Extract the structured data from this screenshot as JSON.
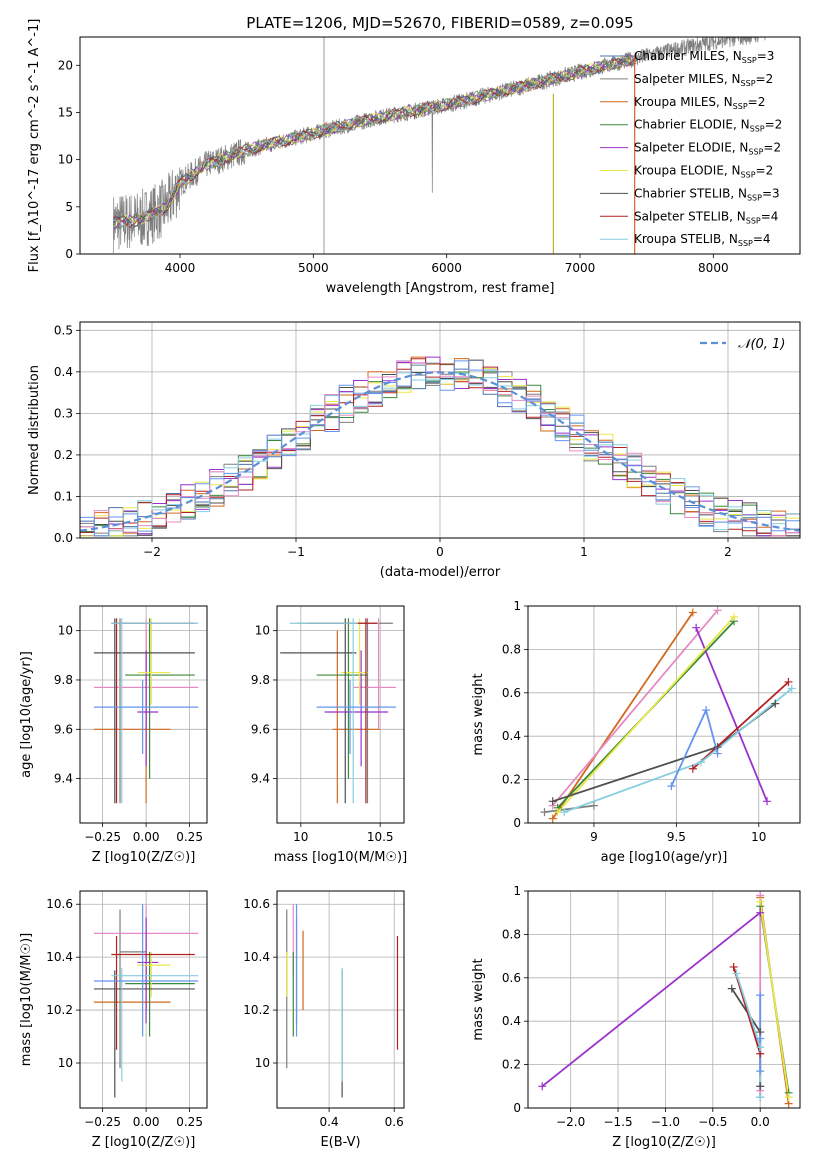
{
  "colors": {
    "Chabrier MILES": "#4c72b0",
    "Salpeter MILES": "#7f7f7f",
    "Kroupa MILES": "#d2691e",
    "Chabrier ELODIE": "#3a8a3a",
    "Salpeter ELODIE": "#9932cc",
    "Kroupa ELODIE": "#e8e84a",
    "Chabrier STELIB": "#505050",
    "Salpeter STELIB": "#b22222",
    "Kroupa STELIB": "#87cee0",
    "extra_pink": "#e78ac3",
    "extra_blue": "#6495ed",
    "gauss": "#5b8fd6",
    "data": "#808080"
  },
  "chart_data": [
    {
      "id": "spectrum",
      "type": "line",
      "title": "PLATE=1206, MJD=52670, FIBERID=0589, z=0.095",
      "xlabel": "wavelength [Angstrom, rest frame]",
      "ylabel": "Flux [f_λ10^-17 erg cm^-2 s^-1 A^-1]",
      "xlim": [
        3250,
        8650
      ],
      "ylim": [
        0,
        23
      ],
      "xticks": [
        4000,
        5000,
        6000,
        7000,
        8000
      ],
      "yticks": [
        0,
        5,
        10,
        15,
        20
      ],
      "continuum": [
        [
          3500,
          3.3
        ],
        [
          3700,
          3.6
        ],
        [
          3900,
          5.0
        ],
        [
          4000,
          7.5
        ],
        [
          4200,
          9.5
        ],
        [
          4500,
          11.0
        ],
        [
          5000,
          12.8
        ],
        [
          5500,
          14.5
        ],
        [
          6000,
          15.8
        ],
        [
          6500,
          17.5
        ],
        [
          7000,
          19.3
        ],
        [
          7500,
          21.0
        ],
        [
          8000,
          22.5
        ],
        [
          8400,
          23.4
        ]
      ],
      "legend": [
        {
          "label": "Chabrier MILES, N",
          "nssp": "3"
        },
        {
          "label": "Salpeter MILES, N",
          "nssp": "2"
        },
        {
          "label": "Kroupa MILES, N",
          "nssp": "2"
        },
        {
          "label": "Chabrier ELODIE, N",
          "nssp": "2"
        },
        {
          "label": "Salpeter ELODIE, N",
          "nssp": "2"
        },
        {
          "label": "Kroupa ELODIE, N",
          "nssp": "2"
        },
        {
          "label": "Chabrier STELIB, N",
          "nssp": "3"
        },
        {
          "label": "Salpeter STELIB, N",
          "nssp": "4"
        },
        {
          "label": "Kroupa STELIB, N",
          "nssp": "4"
        }
      ],
      "legend_sub": "SSP",
      "legend_placement": "upper-right"
    },
    {
      "id": "residuals",
      "type": "line",
      "xlabel": "(data-model)/error",
      "ylabel": "Normed distribution",
      "xlim": [
        -2.5,
        2.5
      ],
      "ylim": [
        0,
        0.52
      ],
      "xticks": [
        -2,
        -1,
        0,
        1,
        2
      ],
      "xticklabels": [
        "−2",
        "−1",
        "0",
        "1",
        "2"
      ],
      "yticks": [
        0.0,
        0.1,
        0.2,
        0.3,
        0.4,
        0.5
      ],
      "yticklabels": [
        "0.0",
        "0.1",
        "0.2",
        "0.3",
        "0.4",
        "0.5"
      ],
      "legend": "N(0,1)",
      "grid": true
    },
    {
      "id": "age_vs_Z",
      "type": "scatter",
      "xlabel": "Z [log10(Z/Z☉)]",
      "ylabel": "age [log10(age/yr)]",
      "xlim": [
        -0.38,
        0.35
      ],
      "ylim": [
        9.22,
        10.1
      ],
      "xticks": [
        -0.25,
        0.0,
        0.25
      ],
      "xticklabels": [
        "−0.25",
        "0.00",
        "0.25"
      ],
      "yticks": [
        9.4,
        9.6,
        9.8,
        10.0
      ],
      "grid": true
    },
    {
      "id": "age_vs_mass",
      "type": "scatter",
      "xlabel": "mass [log10(M/M☉)]",
      "xlim": [
        9.85,
        10.65
      ],
      "ylim": [
        9.22,
        10.1
      ],
      "xticks": [
        10.0,
        10.5
      ],
      "yticks": [
        9.4,
        9.6,
        9.8,
        10.0
      ],
      "grid": true
    },
    {
      "id": "weight_vs_age",
      "type": "line",
      "xlabel": "age [log10(age/yr)]",
      "ylabel": "mass weight",
      "xlim": [
        8.6,
        10.25
      ],
      "ylim": [
        0,
        1.0
      ],
      "xticks": [
        9.0,
        9.5,
        10.0
      ],
      "yticks": [
        0.0,
        0.2,
        0.4,
        0.6,
        0.8,
        1.0
      ],
      "grid": true
    },
    {
      "id": "mass_vs_Z",
      "type": "scatter",
      "xlabel": "Z [log10(Z/Z☉)]",
      "ylabel": "mass [log10(M/M☉)]",
      "xlim": [
        -0.38,
        0.35
      ],
      "ylim": [
        9.83,
        10.65
      ],
      "xticks": [
        -0.25,
        0.0,
        0.25
      ],
      "xticklabels": [
        "−0.25",
        "0.00",
        "0.25"
      ],
      "yticks": [
        10.0,
        10.2,
        10.4,
        10.6
      ],
      "grid": true
    },
    {
      "id": "mass_vs_ebv",
      "type": "scatter",
      "xlabel": "E(B-V)",
      "xlim": [
        0.24,
        0.63
      ],
      "ylim": [
        9.83,
        10.65
      ],
      "xticks": [
        0.4,
        0.6
      ],
      "yticks": [
        10.0,
        10.2,
        10.4,
        10.6
      ],
      "grid": true
    },
    {
      "id": "weight_vs_Z",
      "type": "line",
      "xlabel": "Z [log10(Z/Z☉)]",
      "ylabel": "mass weight",
      "xlim": [
        -2.45,
        0.42
      ],
      "ylim": [
        0,
        1.0
      ],
      "xticks": [
        -2.0,
        -1.5,
        -1.0,
        -0.5,
        0.0
      ],
      "xticklabels": [
        "−2.0",
        "−1.5",
        "−1.0",
        "−0.5",
        "0.0"
      ],
      "yticks": [
        0.0,
        0.2,
        0.4,
        0.6,
        0.8,
        1.0
      ],
      "grid": true
    }
  ],
  "models": [
    {
      "color": "#7f7f7f",
      "z": -0.15,
      "zerr": [
        -0.15,
        0.0
      ],
      "age": 10.03,
      "ageerr": [
        9.3,
        10.05
      ],
      "mass": 10.42,
      "merr": [
        9.98,
        10.58
      ],
      "ebv": 0.27,
      "weights_age": [
        [
          8.7,
          0.05
        ],
        [
          9.0,
          0.08
        ]
      ],
      "weights_z": [
        [
          0.0,
          0.05
        ],
        [
          0.0,
          0.1
        ]
      ]
    },
    {
      "color": "#d2691e",
      "z": 0.0,
      "zerr": [
        -0.3,
        0.14
      ],
      "age": 9.6,
      "ageerr": [
        9.3,
        10.0
      ],
      "mass": 10.23,
      "merr": [
        10.2,
        10.5
      ],
      "ebv": 0.32,
      "weights_age": [
        [
          8.75,
          0.02
        ],
        [
          9.6,
          0.97
        ]
      ],
      "weights_z": [
        [
          0.3,
          0.02
        ],
        [
          0.0,
          0.97
        ]
      ]
    },
    {
      "color": "#e78ac3",
      "z": 0.0,
      "zerr": [
        -0.3,
        0.3
      ],
      "age": 9.77,
      "ageerr": [
        9.6,
        10.05
      ],
      "mass": 10.49,
      "merr": [
        10.33,
        10.6
      ],
      "ebv": 0.29,
      "weights_age": [
        [
          8.75,
          0.08
        ],
        [
          9.75,
          0.98
        ]
      ],
      "weights_z": [
        [
          0.0,
          0.08
        ],
        [
          0.0,
          0.98
        ]
      ]
    },
    {
      "color": "#3a8a3a",
      "z": 0.02,
      "zerr": [
        -0.12,
        0.28
      ],
      "age": 9.82,
      "ageerr": [
        9.4,
        10.05
      ],
      "mass": 10.3,
      "merr": [
        10.1,
        10.42
      ],
      "ebv": 0.29,
      "weights_age": [
        [
          8.78,
          0.07
        ],
        [
          9.85,
          0.93
        ]
      ],
      "weights_z": [
        [
          0.3,
          0.07
        ],
        [
          0.0,
          0.93
        ]
      ]
    },
    {
      "color": "#9932cc",
      "z": 0.0,
      "zerr": [
        -0.05,
        0.07
      ],
      "age": 9.67,
      "ageerr": [
        9.45,
        9.92
      ],
      "mass": 10.38,
      "merr": [
        10.15,
        10.55
      ],
      "ebv": 0.3,
      "weights_age": [
        [
          9.62,
          0.9
        ],
        [
          10.05,
          0.1
        ]
      ],
      "weights_z": [
        [
          0.0,
          0.9
        ],
        [
          -2.3,
          0.1
        ]
      ]
    },
    {
      "color": "#e8e84a",
      "z": 0.03,
      "zerr": [
        -0.05,
        0.14
      ],
      "age": 9.83,
      "ageerr": [
        9.7,
        10.05
      ],
      "mass": 10.37,
      "merr": [
        10.25,
        10.42
      ],
      "ebv": 0.27,
      "weights_age": [
        [
          8.78,
          0.05
        ],
        [
          9.85,
          0.95
        ]
      ],
      "weights_z": [
        [
          0.3,
          0.05
        ],
        [
          0.0,
          0.95
        ]
      ]
    },
    {
      "color": "#505050",
      "z": -0.18,
      "zerr": [
        -0.3,
        0.28
      ],
      "age": 9.91,
      "ageerr": [
        9.3,
        10.05
      ],
      "mass": 10.28,
      "merr": [
        9.87,
        10.35
      ],
      "ebv": 0.44,
      "weights_age": [
        [
          8.75,
          0.1
        ],
        [
          9.75,
          0.35
        ],
        [
          10.1,
          0.55
        ]
      ],
      "weights_z": [
        [
          -0.3,
          0.55
        ],
        [
          0.0,
          0.35
        ],
        [
          0.0,
          0.1
        ]
      ]
    },
    {
      "color": "#b22222",
      "z": -0.17,
      "zerr": [
        -0.2,
        0.28
      ],
      "age": 10.03,
      "ageerr": [
        9.3,
        10.05
      ],
      "mass": 10.41,
      "merr": [
        10.05,
        10.48
      ],
      "ebv": 0.61,
      "weights_age": [
        [
          9.6,
          0.25
        ],
        [
          10.18,
          0.65
        ]
      ],
      "weights_z": [
        [
          -0.28,
          0.65
        ],
        [
          0.0,
          0.25
        ]
      ]
    },
    {
      "color": "#87cee0",
      "z": -0.14,
      "zerr": [
        -0.2,
        0.3
      ],
      "age": 10.03,
      "ageerr": [
        9.3,
        10.05
      ],
      "mass": 10.33,
      "merr": [
        9.93,
        10.36
      ],
      "ebv": 0.44,
      "weights_age": [
        [
          8.82,
          0.05
        ],
        [
          9.65,
          0.28
        ],
        [
          10.2,
          0.62
        ]
      ],
      "weights_z": [
        [
          -0.25,
          0.62
        ],
        [
          0.0,
          0.28
        ],
        [
          0.0,
          0.05
        ]
      ]
    },
    {
      "color": "#6495ed",
      "z": -0.02,
      "zerr": [
        -0.3,
        0.3
      ],
      "age": 9.69,
      "ageerr": [
        9.5,
        9.8
      ],
      "mass": 10.31,
      "merr": [
        10.1,
        10.6
      ],
      "ebv": 0.3,
      "weights_age": [
        [
          9.47,
          0.17
        ],
        [
          9.68,
          0.52
        ],
        [
          9.75,
          0.32
        ]
      ],
      "weights_z": [
        [
          0.0,
          0.52
        ],
        [
          0.0,
          0.32
        ],
        [
          0.0,
          0.17
        ]
      ]
    }
  ],
  "nssp_text": "N"
}
